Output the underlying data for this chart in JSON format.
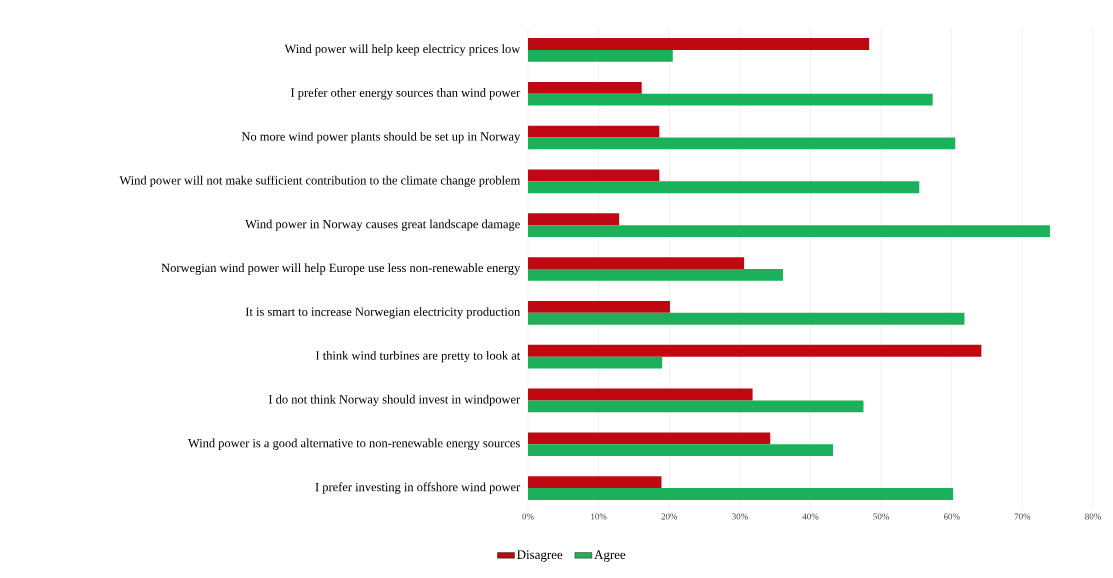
{
  "chart_data": {
    "type": "bar",
    "orientation": "horizontal",
    "categories": [
      "Wind power will help keep electricy prices low",
      "I prefer other energy sources than wind power",
      "No more wind power plants should be set up in Norway",
      "Wind power will not make sufficient contribution to the climate change problem",
      "Wind power in Norway causes great landscape damage",
      "Norwegian wind power will help Europe use less non-renewable energy",
      "It is smart to increase Norwegian electricity production",
      "I think wind turbines are pretty to look at",
      "I do not think Norway should invest in windpower",
      "Wind power is a good alternative to non-renewable energy sources",
      "I prefer investing in offshore wind power"
    ],
    "series": [
      {
        "name": "Disagree",
        "color": "#bf0812",
        "values": [
          48.3,
          16.1,
          18.6,
          18.6,
          12.9,
          30.6,
          20.1,
          64.2,
          31.8,
          34.3,
          18.9
        ]
      },
      {
        "name": "Agree",
        "color": "#1cb05a",
        "values": [
          20.5,
          57.3,
          60.5,
          55.4,
          73.9,
          36.1,
          61.8,
          19.0,
          47.5,
          43.2,
          60.2
        ]
      }
    ],
    "xlim": [
      0,
      80
    ],
    "xticks": [
      {
        "value": 0,
        "label": "0%"
      },
      {
        "value": 10,
        "label": "10%"
      },
      {
        "value": 20,
        "label": "20%"
      },
      {
        "value": 30,
        "label": "30%"
      },
      {
        "value": 40,
        "label": "40%"
      },
      {
        "value": 50,
        "label": "50%"
      },
      {
        "value": 60,
        "label": "60%"
      },
      {
        "value": 70,
        "label": "70%"
      },
      {
        "value": 80,
        "label": "80%"
      }
    ],
    "grid": "x",
    "legend": "bottom"
  }
}
